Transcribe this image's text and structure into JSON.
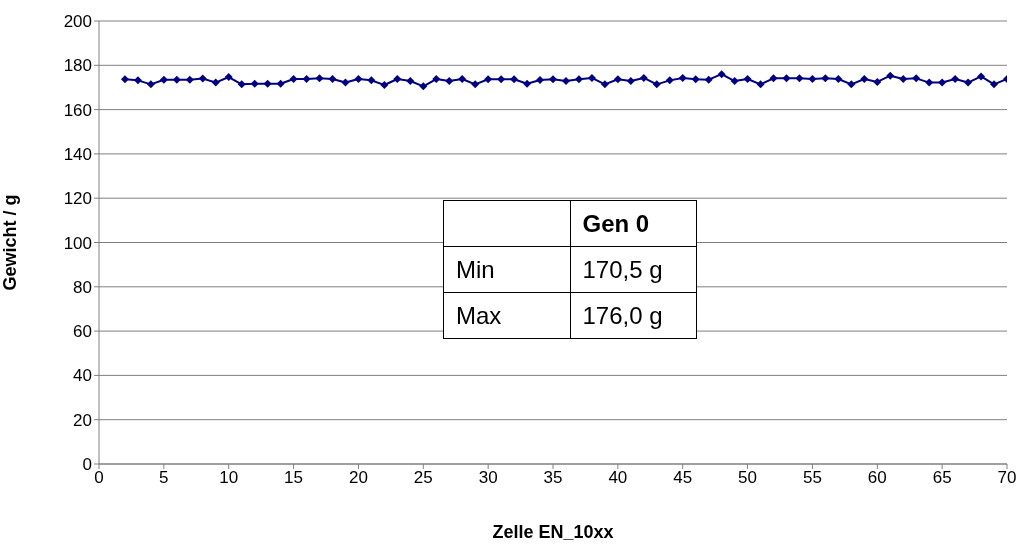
{
  "chart_data": {
    "type": "line",
    "xlabel": "Zelle EN_10xx",
    "ylabel": "Gewicht / g",
    "x": [
      2,
      3,
      4,
      5,
      6,
      7,
      8,
      9,
      10,
      11,
      12,
      13,
      14,
      15,
      16,
      17,
      18,
      19,
      20,
      21,
      22,
      23,
      24,
      25,
      26,
      27,
      28,
      29,
      30,
      31,
      32,
      33,
      34,
      35,
      36,
      37,
      38,
      39,
      40,
      41,
      42,
      43,
      44,
      45,
      46,
      47,
      48,
      49,
      50,
      51,
      52,
      53,
      54,
      55,
      56,
      57,
      58,
      59,
      60,
      61,
      62,
      63,
      64,
      65,
      66,
      67,
      68,
      69,
      70
    ],
    "series": [
      {
        "color": "#000080",
        "values": [
          173.7,
          173.2,
          171.4,
          173.5,
          173.5,
          173.5,
          174,
          172.2,
          174.7,
          171.4,
          171.7,
          171.7,
          171.7,
          173.8,
          173.8,
          174.1,
          173.8,
          172.2,
          173.8,
          173.2,
          171.1,
          173.8,
          172.9,
          170.5,
          173.8,
          172.9,
          173.8,
          171.4,
          173.7,
          173.7,
          173.7,
          171.7,
          173.4,
          173.7,
          172.9,
          173.7,
          174.3,
          171.4,
          173.7,
          172.9,
          174.3,
          171.4,
          173.2,
          174.3,
          173.7,
          173.5,
          176,
          172.9,
          173.8,
          171.4,
          174.1,
          174.1,
          174.1,
          173.8,
          174.1,
          173.8,
          171.4,
          173.8,
          172.5,
          175.3,
          173.8,
          174.1,
          172.2,
          172.2,
          173.8,
          172.2,
          175,
          171.4,
          173.8
        ]
      }
    ],
    "xlim": [
      0,
      70
    ],
    "xticks": [
      0,
      5,
      10,
      15,
      20,
      25,
      30,
      35,
      40,
      45,
      50,
      55,
      60,
      65,
      70
    ],
    "ylim": [
      0,
      200
    ],
    "yticks": [
      0,
      20,
      40,
      60,
      80,
      100,
      120,
      140,
      160,
      180,
      200
    ],
    "grid": "y",
    "marker": "diamond",
    "line_style": "solid",
    "annotations": [
      "Gen 0",
      "Min",
      "170,5 g",
      "Max",
      "176,0 g"
    ]
  }
}
